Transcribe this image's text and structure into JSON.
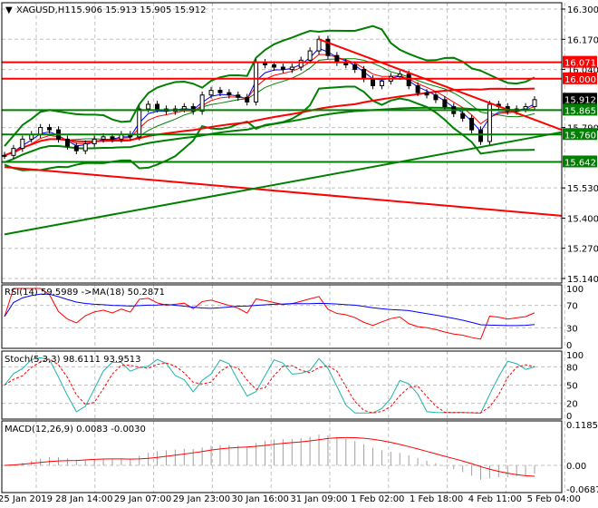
{
  "header": {
    "symbol": "XAGUSD,H1",
    "ohlc": "15.906 15.913 15.905 15.912"
  },
  "chart_data": {
    "type": "line",
    "title": "XAGUSD,H1",
    "price_axis": {
      "min": 15.14,
      "max": 16.3,
      "ticks": [
        "16.300",
        "16.170",
        "16.040",
        "15.790",
        "15.530",
        "15.400",
        "15.270",
        "15.140"
      ]
    },
    "price_labels": [
      {
        "text": "16.071",
        "value": 16.071,
        "color": "#ff0000",
        "line": true
      },
      {
        "text": "16.000",
        "value": 16.0,
        "color": "#ff0000",
        "line": true
      },
      {
        "text": "15.912",
        "value": 15.912,
        "color": "#000000",
        "line": false
      },
      {
        "text": "15.865",
        "value": 15.865,
        "color": "#008000",
        "line": true
      },
      {
        "text": "15.760",
        "value": 15.76,
        "color": "#008000",
        "line": true
      },
      {
        "text": "15.642",
        "value": 15.642,
        "color": "#008000",
        "line": true
      }
    ],
    "closes": [
      15.67,
      15.7,
      15.74,
      15.76,
      15.79,
      15.78,
      15.74,
      15.71,
      15.69,
      15.72,
      15.74,
      15.75,
      15.74,
      15.76,
      15.75,
      15.87,
      15.89,
      15.87,
      15.86,
      15.87,
      15.88,
      15.86,
      15.93,
      15.95,
      15.94,
      15.93,
      15.92,
      15.9,
      16.07,
      16.06,
      16.05,
      16.04,
      16.05,
      16.08,
      16.12,
      16.17,
      16.1,
      16.07,
      16.06,
      16.04,
      16.0,
      15.97,
      15.99,
      16.01,
      16.02,
      15.97,
      15.94,
      15.93,
      15.91,
      15.88,
      15.85,
      15.83,
      15.78,
      15.73,
      15.89,
      15.88,
      15.86,
      15.87,
      15.88,
      15.91
    ],
    "trendlines": [
      {
        "color": "#ff0000",
        "from": [
          35,
          16.17
        ],
        "to": [
          61,
          15.78
        ]
      },
      {
        "color": "#ff0000",
        "from": [
          0,
          15.62
        ],
        "to": [
          61,
          15.41
        ]
      },
      {
        "color": "#008000",
        "from": [
          0,
          15.33
        ],
        "to": [
          61,
          15.77
        ]
      }
    ],
    "time_labels": [
      "25 Jan 2019",
      "28 Jan 14:00",
      "29 Jan 07:00",
      "29 Jan 23:00",
      "30 Jan 16:00",
      "31 Jan 09:00",
      "1 Feb 02:00",
      "1 Feb 18:00",
      "4 Feb 11:00",
      "5 Feb 04:00"
    ],
    "rsi": {
      "label": "RSI(14) 59.5989  ->MA(18) 50.2871",
      "ticks": [
        "100",
        "70",
        "30",
        "0"
      ]
    },
    "stoch": {
      "label": "Stoch(5,3,3) 98.6111 93.9513",
      "ticks": [
        "100",
        "80",
        "50",
        "20",
        "0"
      ]
    },
    "macd": {
      "label": "MACD(12,26,9) 0.0083 -0.0030",
      "ticks": [
        "0.1185",
        "0.00",
        "-0.0687"
      ]
    }
  }
}
